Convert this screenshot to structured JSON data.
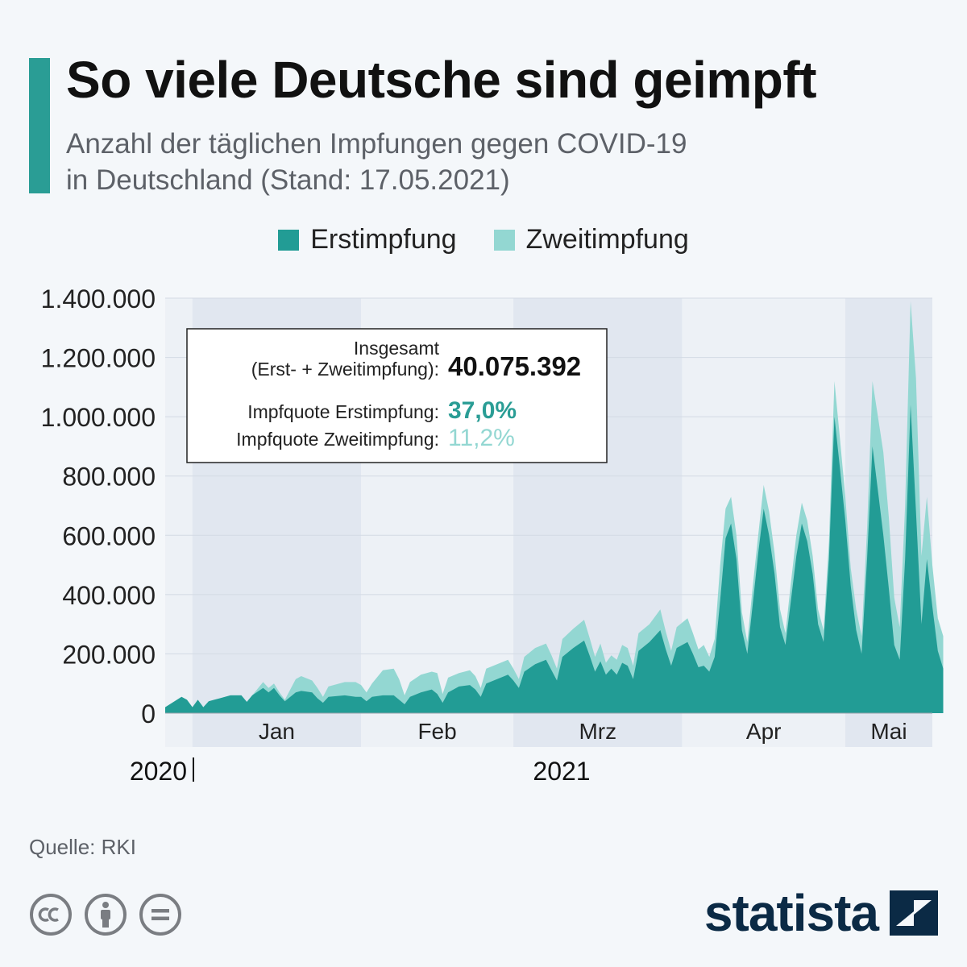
{
  "header": {
    "title": "So viele Deutsche sind geimpft",
    "subtitle_line1": "Anzahl der täglichen Impfungen gegen COVID-19",
    "subtitle_line2": "in Deutschland (Stand: 17.05.2021)"
  },
  "colors": {
    "accent": "#2a9d95",
    "erst": "#229c95",
    "zweit": "#93d7d2",
    "brand": "#0b2a45",
    "band_dark": "#e1e7f0",
    "band_light": "#edf1f6"
  },
  "legend": {
    "erst_label": "Erstimpfung",
    "zweit_label": "Zweitimpfung"
  },
  "info_box": {
    "total_label_line1": "Insgesamt",
    "total_label_line2": "(Erst- + Zweitimpfung):",
    "total_value": "40.075.392",
    "quote_erst_label": "Impfquote Erstimpfung:",
    "quote_erst_value": "37,0%",
    "quote_zweit_label": "Impfquote Zweitimpfung:",
    "quote_zweit_value": "11,2%"
  },
  "footer": {
    "source": "Quelle: RKI",
    "brand": "statista"
  },
  "chart_data": {
    "type": "area",
    "title": "So viele Deutsche sind geimpft",
    "stacked": true,
    "x_start": "2020-12-27",
    "x_end": "2021-05-17",
    "ylim": [
      0,
      1400000
    ],
    "y_ticks": [
      0,
      200000,
      400000,
      600000,
      800000,
      1000000,
      1200000,
      1400000
    ],
    "y_tick_labels": [
      "0",
      "200.000",
      "400.000",
      "600.000",
      "800.000",
      "1.000.000",
      "1.200.000",
      "1.400.000"
    ],
    "month_labels": [
      "Jan",
      "Feb",
      "Mrz",
      "Apr",
      "Mai"
    ],
    "year_labels": [
      "2020",
      "2021"
    ],
    "grid": true,
    "legend_position": "top",
    "series": [
      {
        "name": "Erstimpfung",
        "values": [
          [
            0,
            20000
          ],
          [
            3,
            55000
          ],
          [
            4,
            45000
          ],
          [
            5,
            20000
          ],
          [
            6,
            45000
          ],
          [
            7,
            20000
          ],
          [
            8,
            40000
          ],
          [
            9,
            45000
          ],
          [
            10,
            50000
          ],
          [
            12,
            60000
          ],
          [
            14,
            60000
          ],
          [
            15,
            38000
          ],
          [
            16,
            60000
          ],
          [
            18,
            85000
          ],
          [
            19,
            70000
          ],
          [
            20,
            85000
          ],
          [
            21,
            60000
          ],
          [
            22,
            40000
          ],
          [
            24,
            70000
          ],
          [
            25,
            75000
          ],
          [
            27,
            70000
          ],
          [
            28,
            50000
          ],
          [
            29,
            35000
          ],
          [
            30,
            55000
          ],
          [
            33,
            60000
          ],
          [
            35,
            55000
          ],
          [
            36,
            55000
          ],
          [
            37,
            40000
          ],
          [
            38,
            55000
          ],
          [
            40,
            60000
          ],
          [
            42,
            60000
          ],
          [
            43,
            45000
          ],
          [
            44,
            30000
          ],
          [
            45,
            55000
          ],
          [
            47,
            70000
          ],
          [
            49,
            80000
          ],
          [
            50,
            65000
          ],
          [
            51,
            35000
          ],
          [
            52,
            70000
          ],
          [
            54,
            90000
          ],
          [
            56,
            95000
          ],
          [
            57,
            80000
          ],
          [
            58,
            55000
          ],
          [
            59,
            100000
          ],
          [
            61,
            115000
          ],
          [
            63,
            130000
          ],
          [
            64,
            110000
          ],
          [
            65,
            85000
          ],
          [
            66,
            140000
          ],
          [
            68,
            165000
          ],
          [
            70,
            180000
          ],
          [
            71,
            145000
          ],
          [
            72,
            110000
          ],
          [
            73,
            190000
          ],
          [
            75,
            220000
          ],
          [
            77,
            245000
          ],
          [
            78,
            195000
          ],
          [
            79,
            140000
          ],
          [
            80,
            175000
          ],
          [
            81,
            130000
          ],
          [
            82,
            150000
          ],
          [
            83,
            130000
          ],
          [
            84,
            170000
          ],
          [
            85,
            160000
          ],
          [
            86,
            115000
          ],
          [
            87,
            210000
          ],
          [
            89,
            240000
          ],
          [
            91,
            280000
          ],
          [
            92,
            215000
          ],
          [
            93,
            160000
          ],
          [
            94,
            220000
          ],
          [
            96,
            240000
          ],
          [
            97,
            200000
          ],
          [
            98,
            155000
          ],
          [
            99,
            160000
          ],
          [
            100,
            140000
          ],
          [
            101,
            190000
          ],
          [
            102,
            380000
          ],
          [
            103,
            590000
          ],
          [
            104,
            640000
          ],
          [
            105,
            520000
          ],
          [
            106,
            280000
          ],
          [
            107,
            200000
          ],
          [
            108,
            370000
          ],
          [
            109,
            540000
          ],
          [
            110,
            690000
          ],
          [
            111,
            600000
          ],
          [
            112,
            470000
          ],
          [
            113,
            290000
          ],
          [
            114,
            230000
          ],
          [
            115,
            380000
          ],
          [
            116,
            530000
          ],
          [
            117,
            640000
          ],
          [
            118,
            580000
          ],
          [
            119,
            470000
          ],
          [
            120,
            300000
          ],
          [
            121,
            240000
          ],
          [
            122,
            520000
          ],
          [
            123,
            1000000
          ],
          [
            124,
            830000
          ],
          [
            125,
            650000
          ],
          [
            126,
            430000
          ],
          [
            127,
            280000
          ],
          [
            128,
            200000
          ],
          [
            129,
            520000
          ],
          [
            130,
            900000
          ],
          [
            131,
            750000
          ],
          [
            132,
            600000
          ],
          [
            133,
            420000
          ],
          [
            134,
            230000
          ],
          [
            135,
            180000
          ],
          [
            136,
            520000
          ],
          [
            137,
            1040000
          ],
          [
            138,
            680000
          ],
          [
            139,
            300000
          ],
          [
            140,
            520000
          ],
          [
            141,
            360000
          ],
          [
            142,
            210000
          ],
          [
            143,
            150000
          ]
        ]
      },
      {
        "name": "Zweitimpfung",
        "values": [
          [
            0,
            0
          ],
          [
            3,
            0
          ],
          [
            4,
            0
          ],
          [
            5,
            0
          ],
          [
            6,
            0
          ],
          [
            7,
            0
          ],
          [
            8,
            0
          ],
          [
            9,
            0
          ],
          [
            10,
            0
          ],
          [
            12,
            0
          ],
          [
            14,
            0
          ],
          [
            15,
            0
          ],
          [
            16,
            0
          ],
          [
            18,
            20000
          ],
          [
            19,
            15000
          ],
          [
            20,
            15000
          ],
          [
            21,
            10000
          ],
          [
            22,
            5000
          ],
          [
            24,
            45000
          ],
          [
            25,
            50000
          ],
          [
            27,
            40000
          ],
          [
            28,
            35000
          ],
          [
            29,
            20000
          ],
          [
            30,
            35000
          ],
          [
            33,
            45000
          ],
          [
            35,
            50000
          ],
          [
            36,
            40000
          ],
          [
            37,
            30000
          ],
          [
            38,
            45000
          ],
          [
            40,
            85000
          ],
          [
            42,
            90000
          ],
          [
            43,
            70000
          ],
          [
            44,
            30000
          ],
          [
            45,
            50000
          ],
          [
            47,
            60000
          ],
          [
            49,
            60000
          ],
          [
            50,
            70000
          ],
          [
            51,
            30000
          ],
          [
            52,
            50000
          ],
          [
            54,
            45000
          ],
          [
            56,
            50000
          ],
          [
            57,
            45000
          ],
          [
            58,
            30000
          ],
          [
            59,
            50000
          ],
          [
            61,
            50000
          ],
          [
            63,
            50000
          ],
          [
            64,
            40000
          ],
          [
            65,
            30000
          ],
          [
            66,
            50000
          ],
          [
            68,
            55000
          ],
          [
            70,
            55000
          ],
          [
            71,
            50000
          ],
          [
            72,
            40000
          ],
          [
            73,
            60000
          ],
          [
            75,
            65000
          ],
          [
            77,
            70000
          ],
          [
            78,
            60000
          ],
          [
            79,
            50000
          ],
          [
            80,
            60000
          ],
          [
            81,
            40000
          ],
          [
            82,
            45000
          ],
          [
            83,
            50000
          ],
          [
            84,
            60000
          ],
          [
            85,
            60000
          ],
          [
            86,
            45000
          ],
          [
            87,
            60000
          ],
          [
            89,
            60000
          ],
          [
            91,
            70000
          ],
          [
            92,
            60000
          ],
          [
            93,
            50000
          ],
          [
            94,
            70000
          ],
          [
            96,
            80000
          ],
          [
            97,
            70000
          ],
          [
            98,
            60000
          ],
          [
            99,
            70000
          ],
          [
            100,
            50000
          ],
          [
            101,
            60000
          ],
          [
            102,
            120000
          ],
          [
            103,
            100000
          ],
          [
            104,
            90000
          ],
          [
            105,
            80000
          ],
          [
            106,
            60000
          ],
          [
            107,
            40000
          ],
          [
            108,
            60000
          ],
          [
            109,
            60000
          ],
          [
            110,
            80000
          ],
          [
            111,
            80000
          ],
          [
            112,
            70000
          ],
          [
            113,
            60000
          ],
          [
            114,
            40000
          ],
          [
            115,
            60000
          ],
          [
            116,
            70000
          ],
          [
            117,
            70000
          ],
          [
            118,
            70000
          ],
          [
            119,
            60000
          ],
          [
            120,
            50000
          ],
          [
            121,
            40000
          ],
          [
            122,
            60000
          ],
          [
            123,
            120000
          ],
          [
            124,
            100000
          ],
          [
            125,
            80000
          ],
          [
            126,
            60000
          ],
          [
            127,
            70000
          ],
          [
            128,
            60000
          ],
          [
            129,
            100000
          ],
          [
            130,
            220000
          ],
          [
            131,
            250000
          ],
          [
            132,
            280000
          ],
          [
            133,
            240000
          ],
          [
            134,
            160000
          ],
          [
            135,
            110000
          ],
          [
            136,
            180000
          ],
          [
            137,
            350000
          ],
          [
            138,
            450000
          ],
          [
            139,
            230000
          ],
          [
            140,
            210000
          ],
          [
            141,
            140000
          ],
          [
            142,
            110000
          ],
          [
            143,
            110000
          ]
        ]
      }
    ]
  }
}
